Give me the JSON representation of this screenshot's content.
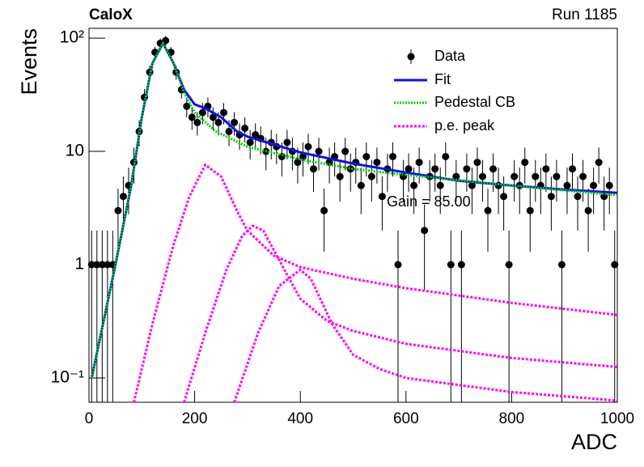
{
  "chart_data": {
    "type": "scatter",
    "title": "CaloX",
    "subtitle": "Run 1185",
    "x_label": "ADC",
    "y_label": "Events",
    "log_y": true,
    "xlim": [
      0,
      1000
    ],
    "xticks": [
      0,
      200,
      400,
      600,
      800,
      1000
    ],
    "ylim": [
      0.061,
      122
    ],
    "yticks": [
      {
        "value": 0.1,
        "label": "10⁻¹"
      },
      1,
      10,
      {
        "value": 100,
        "label": "10²"
      }
    ],
    "annotation": "Gain = 85.00",
    "series": [
      {
        "name": "Data",
        "color": "#000000",
        "x": [
          5,
          15,
          25,
          35,
          45,
          55,
          65,
          75,
          85,
          95,
          105,
          115,
          125,
          135,
          145,
          155,
          165,
          175,
          185,
          195,
          205,
          215,
          225,
          235,
          245,
          255,
          265,
          275,
          285,
          295,
          305,
          315,
          325,
          335,
          345,
          355,
          365,
          375,
          385,
          395,
          405,
          415,
          425,
          435,
          445,
          455,
          465,
          475,
          485,
          495,
          505,
          515,
          525,
          535,
          545,
          555,
          565,
          575,
          585,
          595,
          605,
          615,
          625,
          635,
          645,
          655,
          665,
          675,
          685,
          695,
          705,
          715,
          725,
          735,
          745,
          755,
          765,
          775,
          785,
          795,
          805,
          815,
          825,
          835,
          845,
          855,
          865,
          875,
          885,
          895,
          905,
          915,
          925,
          935,
          945,
          955,
          965,
          975,
          985,
          995
        ],
        "values": [
          1,
          1,
          1,
          1,
          1,
          3,
          4,
          5,
          8,
          15,
          30,
          50,
          75,
          90,
          95,
          75,
          50,
          35,
          25,
          20,
          18,
          22,
          25,
          20,
          18,
          22,
          15,
          18,
          14,
          16,
          12,
          14,
          13,
          10,
          12,
          11,
          9,
          12,
          10,
          8,
          9,
          11,
          7,
          10,
          3,
          8,
          9,
          6,
          10,
          7,
          8,
          5,
          9,
          6,
          8,
          4,
          7,
          9,
          1,
          6,
          7,
          5,
          8,
          2,
          6,
          7,
          5,
          9,
          1,
          6,
          1,
          7,
          5,
          8,
          6,
          3,
          7,
          5,
          4,
          1,
          6,
          5,
          8,
          3,
          6,
          5,
          7,
          4,
          6,
          1,
          5,
          7,
          4,
          6,
          3,
          5,
          8,
          4,
          5,
          1
        ],
        "errors": [
          1,
          1,
          1,
          1,
          1,
          1.7,
          2,
          2.2,
          2.8,
          3.9,
          5.5,
          7.1,
          8.7,
          9.5,
          9.7,
          8.7,
          7.1,
          5.9,
          5,
          4.5,
          4.2,
          4.7,
          5,
          4.5,
          4.2,
          4.7,
          3.9,
          4.2,
          3.7,
          4,
          3.5,
          3.7,
          3.6,
          3.2,
          3.5,
          3.3,
          3,
          3.5,
          3.2,
          2.8,
          3,
          3.3,
          2.6,
          3.2,
          1.7,
          2.8,
          3,
          2.4,
          3.2,
          2.6,
          2.8,
          2.2,
          3,
          2.4,
          2.8,
          2,
          2.6,
          3,
          1,
          2.4,
          2.6,
          2.2,
          2.8,
          1.4,
          2.4,
          2.6,
          2.2,
          3,
          1,
          2.4,
          1,
          2.6,
          2.2,
          2.8,
          2.4,
          1.7,
          2.6,
          2.2,
          2,
          1,
          2.4,
          2.2,
          2.8,
          1.7,
          2.4,
          2.2,
          2.6,
          2,
          2.4,
          1,
          2.2,
          2.6,
          2,
          2.4,
          1.7,
          2.2,
          2.8,
          2,
          2.2,
          1
        ]
      },
      {
        "name": "Fit",
        "color": "#1010e8",
        "x": [
          5,
          50,
          80,
          100,
          120,
          140,
          160,
          180,
          200,
          220,
          250,
          280,
          300,
          350,
          400,
          500,
          600,
          700,
          800,
          900,
          1000
        ],
        "values": [
          0.1,
          1,
          5,
          20,
          60,
          90,
          60,
          35,
          26,
          24,
          20,
          15,
          13.5,
          11.5,
          9.8,
          7.8,
          6.5,
          5.5,
          5,
          4.6,
          4.3
        ]
      },
      {
        "name": "Pedestal CB",
        "color": "#00cc00",
        "x": [
          5,
          50,
          80,
          100,
          120,
          140,
          160,
          180,
          200,
          240,
          300,
          400,
          500,
          600,
          800,
          1000
        ],
        "values": [
          0.1,
          1,
          5,
          20,
          60,
          90,
          60,
          33,
          22,
          15,
          11,
          8.5,
          7,
          6.2,
          5,
          4.1
        ]
      },
      {
        "name": "p.e. peak",
        "color": "#ff00ff",
        "components": [
          {
            "x": [
              85,
              120,
              160,
              190,
              220,
              250,
              280,
              300,
              350,
              400,
              500,
              600,
              800,
              1000
            ],
            "values": [
              0.061,
              0.3,
              1.5,
              4,
              7.6,
              6,
              3,
              2,
              1.2,
              0.95,
              0.75,
              0.62,
              0.46,
              0.36
            ]
          },
          {
            "x": [
              180,
              220,
              260,
              290,
              310,
              330,
              370,
              400,
              450,
              500,
              600,
              800,
              1000
            ],
            "values": [
              0.061,
              0.25,
              0.9,
              1.8,
              2.2,
              2,
              0.9,
              0.5,
              0.32,
              0.26,
              0.2,
              0.15,
              0.125
            ]
          },
          {
            "x": [
              275,
              320,
              360,
              400,
              420,
              460,
              500,
              550,
              600,
              800,
              1000
            ],
            "values": [
              0.061,
              0.25,
              0.65,
              0.9,
              0.75,
              0.3,
              0.16,
              0.12,
              0.1,
              0.075,
              0.063
            ]
          }
        ]
      }
    ]
  }
}
